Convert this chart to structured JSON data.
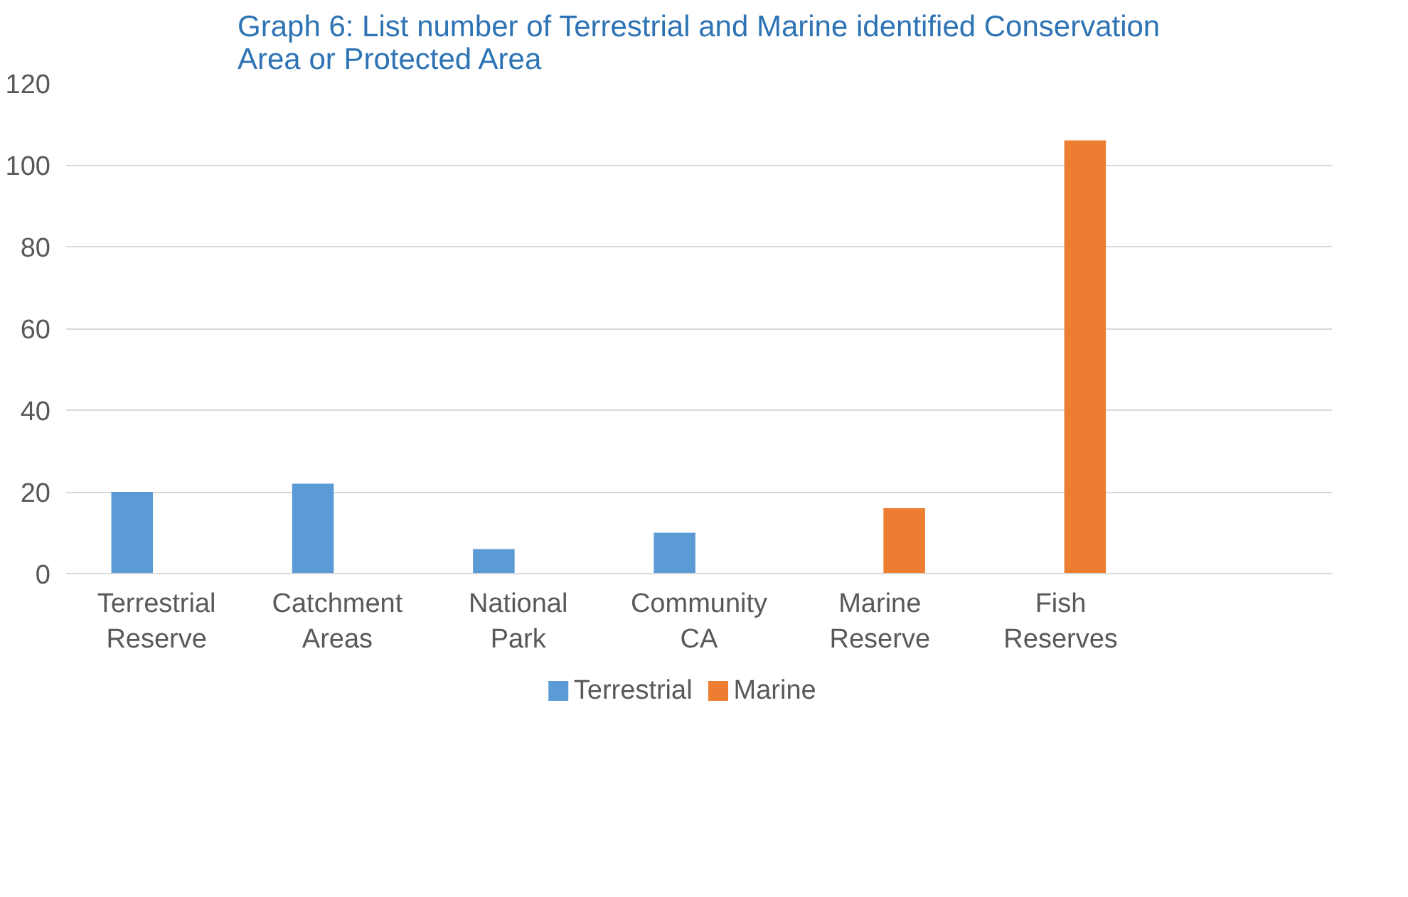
{
  "chart_data": {
    "type": "bar",
    "title": "Graph 6: List number of Terrestrial and Marine identified Conservation Area or Protected Area",
    "categories": [
      "Terrestrial\nReserve",
      "Catchment\nAreas",
      "National\nPark",
      "Community\nCA",
      "Marine\nReserve",
      "Fish\nReserves",
      null
    ],
    "series": [
      {
        "name": "Terrestrial",
        "color": "#5b9bd5",
        "values": [
          20,
          22,
          6,
          10,
          null,
          null,
          null
        ]
      },
      {
        "name": "Marine",
        "color": "#ed7d31",
        "values": [
          null,
          null,
          null,
          null,
          16,
          106,
          null
        ]
      }
    ],
    "ylim": [
      0,
      120
    ],
    "yticks": [
      0,
      20,
      40,
      60,
      80,
      100,
      120
    ],
    "grid": "y",
    "legend": "bottom"
  }
}
